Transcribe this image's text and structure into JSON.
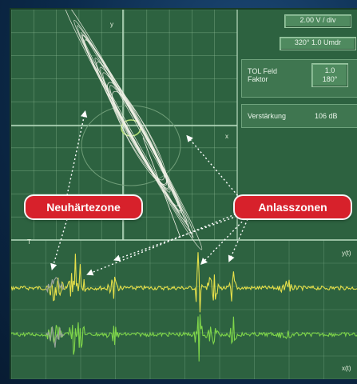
{
  "scale": {
    "volts_per_div": "2.00 V / div",
    "phase_rotation": "320°  1.0 Umdr"
  },
  "tol_field": {
    "label_line1": "TOL Feld",
    "label_line2": "Faktor",
    "value_line1": "1.0",
    "value_line2": "180°"
  },
  "gain": {
    "label": "Verstärkung",
    "value": "106 dB"
  },
  "axis_labels": {
    "y": "y",
    "x": "x",
    "yt": "y(t)",
    "xt": "x(t)",
    "marker": "T"
  },
  "callouts": {
    "left": "Neuhärtezone",
    "right": "Anlasszonen"
  },
  "colors": {
    "screen_bg": "#2d6240",
    "grid": "#8fbf98",
    "trace_y": "#e6e04a",
    "trace_x": "#7fd64a",
    "callout_bg": "#d7212b"
  }
}
